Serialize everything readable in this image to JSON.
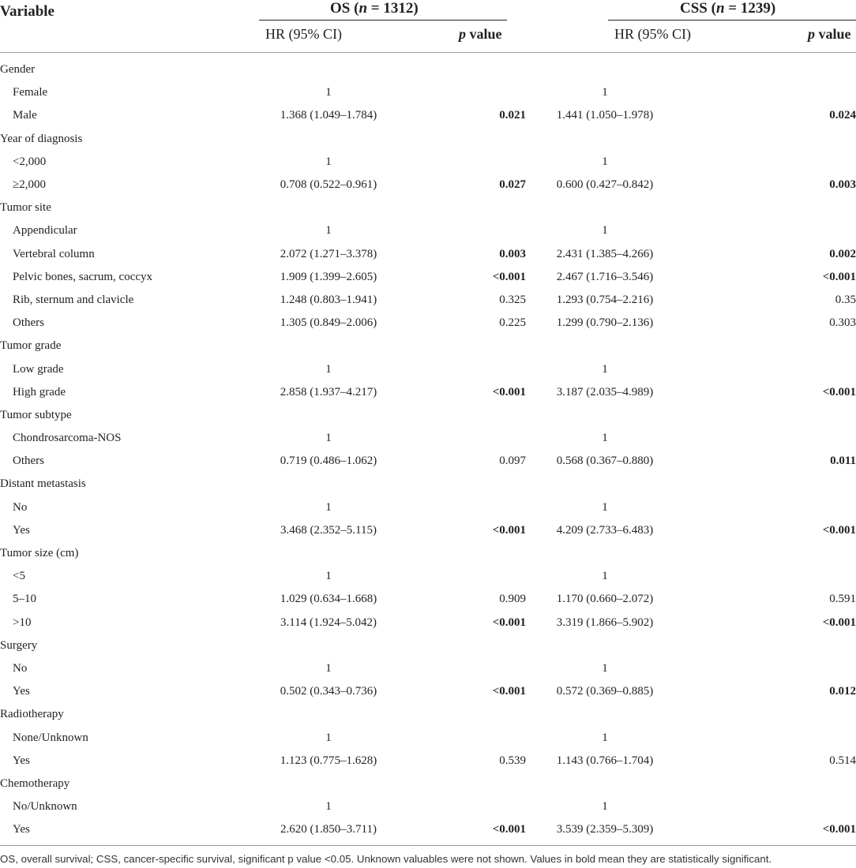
{
  "header": {
    "variable_label": "Variable",
    "os_group": "OS (",
    "os_n_label": "n",
    "os_n_value": " = 1312)",
    "css_group": "CSS (",
    "css_n_label": "n",
    "css_n_value": " = 1239)",
    "hr_label": "HR (95% CI)",
    "p_label_italic": "p",
    "p_label_rest": " value"
  },
  "rows": [
    {
      "label": "Gender",
      "indent": false,
      "os_hr": "",
      "os_p": "",
      "os_sig": false,
      "css_hr": "",
      "css_p": "",
      "css_sig": false
    },
    {
      "label": "Female",
      "indent": true,
      "os_hr": "1",
      "os_p": "",
      "os_sig": false,
      "css_hr": "1",
      "css_p": "",
      "css_sig": false
    },
    {
      "label": "Male",
      "indent": true,
      "os_hr": "1.368 (1.049–1.784)",
      "os_p": "0.021",
      "os_sig": true,
      "css_hr": "1.441 (1.050–1.978)",
      "css_p": "0.024",
      "css_sig": true
    },
    {
      "label": "Year of diagnosis",
      "indent": false,
      "os_hr": "",
      "os_p": "",
      "os_sig": false,
      "css_hr": "",
      "css_p": "",
      "css_sig": false
    },
    {
      "label": "<2,000",
      "indent": true,
      "os_hr": "1",
      "os_p": "",
      "os_sig": false,
      "css_hr": "1",
      "css_p": "",
      "css_sig": false
    },
    {
      "label": "≥2,000",
      "indent": true,
      "os_hr": "0.708 (0.522–0.961)",
      "os_p": "0.027",
      "os_sig": true,
      "css_hr": "0.600 (0.427–0.842)",
      "css_p": "0.003",
      "css_sig": true
    },
    {
      "label": "Tumor site",
      "indent": false,
      "os_hr": "",
      "os_p": "",
      "os_sig": false,
      "css_hr": "",
      "css_p": "",
      "css_sig": false
    },
    {
      "label": "Appendicular",
      "indent": true,
      "os_hr": "1",
      "os_p": "",
      "os_sig": false,
      "css_hr": "1",
      "css_p": "",
      "css_sig": false
    },
    {
      "label": "Vertebral column",
      "indent": true,
      "os_hr": "2.072 (1.271–3.378)",
      "os_p": "0.003",
      "os_sig": true,
      "css_hr": "2.431 (1.385–4.266)",
      "css_p": "0.002",
      "css_sig": true
    },
    {
      "label": "Pelvic bones, sacrum, coccyx",
      "indent": true,
      "os_hr": "1.909 (1.399–2.605)",
      "os_p": "<0.001",
      "os_sig": true,
      "css_hr": "2.467 (1.716–3.546)",
      "css_p": "<0.001",
      "css_sig": true
    },
    {
      "label": "Rib, sternum and clavicle",
      "indent": true,
      "os_hr": "1.248 (0.803–1.941)",
      "os_p": "0.325",
      "os_sig": false,
      "css_hr": "1.293 (0.754–2.216)",
      "css_p": "0.35",
      "css_sig": false
    },
    {
      "label": "Others",
      "indent": true,
      "os_hr": "1.305 (0.849–2.006)",
      "os_p": "0.225",
      "os_sig": false,
      "css_hr": "1.299 (0.790–2.136)",
      "css_p": "0.303",
      "css_sig": false
    },
    {
      "label": "Tumor grade",
      "indent": false,
      "os_hr": "",
      "os_p": "",
      "os_sig": false,
      "css_hr": "",
      "css_p": "",
      "css_sig": false
    },
    {
      "label": "Low grade",
      "indent": true,
      "os_hr": "1",
      "os_p": "",
      "os_sig": false,
      "css_hr": "1",
      "css_p": "",
      "css_sig": false
    },
    {
      "label": "High grade",
      "indent": true,
      "os_hr": "2.858 (1.937–4.217)",
      "os_p": "<0.001",
      "os_sig": true,
      "css_hr": "3.187 (2.035–4.989)",
      "css_p": "<0.001",
      "css_sig": true
    },
    {
      "label": "Tumor subtype",
      "indent": false,
      "os_hr": "",
      "os_p": "",
      "os_sig": false,
      "css_hr": "",
      "css_p": "",
      "css_sig": false
    },
    {
      "label": "Chondrosarcoma-NOS",
      "indent": true,
      "os_hr": "1",
      "os_p": "",
      "os_sig": false,
      "css_hr": "1",
      "css_p": "",
      "css_sig": false
    },
    {
      "label": "Others",
      "indent": true,
      "os_hr": "0.719 (0.486–1.062)",
      "os_p": "0.097",
      "os_sig": false,
      "css_hr": "0.568 (0.367–0.880)",
      "css_p": "0.011",
      "css_sig": true
    },
    {
      "label": "Distant metastasis",
      "indent": false,
      "os_hr": "",
      "os_p": "",
      "os_sig": false,
      "css_hr": "",
      "css_p": "",
      "css_sig": false
    },
    {
      "label": "No",
      "indent": true,
      "os_hr": "1",
      "os_p": "",
      "os_sig": false,
      "css_hr": "1",
      "css_p": "",
      "css_sig": false
    },
    {
      "label": "Yes",
      "indent": true,
      "os_hr": "3.468 (2.352–5.115)",
      "os_p": "<0.001",
      "os_sig": true,
      "css_hr": "4.209 (2.733–6.483)",
      "css_p": "<0.001",
      "css_sig": true
    },
    {
      "label": "Tumor size (cm)",
      "indent": false,
      "os_hr": "",
      "os_p": "",
      "os_sig": false,
      "css_hr": "",
      "css_p": "",
      "css_sig": false
    },
    {
      "label": "<5",
      "indent": true,
      "os_hr": "1",
      "os_p": "",
      "os_sig": false,
      "css_hr": "1",
      "css_p": "",
      "css_sig": false
    },
    {
      "label": "5–10",
      "indent": true,
      "os_hr": "1.029 (0.634–1.668)",
      "os_p": "0.909",
      "os_sig": false,
      "css_hr": "1.170 (0.660–2.072)",
      "css_p": "0.591",
      "css_sig": false
    },
    {
      "label": ">10",
      "indent": true,
      "os_hr": "3.114 (1.924–5.042)",
      "os_p": "<0.001",
      "os_sig": true,
      "css_hr": "3.319 (1.866–5.902)",
      "css_p": "<0.001",
      "css_sig": true
    },
    {
      "label": "Surgery",
      "indent": false,
      "os_hr": "",
      "os_p": "",
      "os_sig": false,
      "css_hr": "",
      "css_p": "",
      "css_sig": false
    },
    {
      "label": "No",
      "indent": true,
      "os_hr": "1",
      "os_p": "",
      "os_sig": false,
      "css_hr": "1",
      "css_p": "",
      "css_sig": false
    },
    {
      "label": "Yes",
      "indent": true,
      "os_hr": "0.502 (0.343–0.736)",
      "os_p": "<0.001",
      "os_sig": true,
      "css_hr": "0.572 (0.369–0.885)",
      "css_p": "0.012",
      "css_sig": true
    },
    {
      "label": "Radiotherapy",
      "indent": false,
      "os_hr": "",
      "os_p": "",
      "os_sig": false,
      "css_hr": "",
      "css_p": "",
      "css_sig": false
    },
    {
      "label": "None/Unknown",
      "indent": true,
      "os_hr": "1",
      "os_p": "",
      "os_sig": false,
      "css_hr": "1",
      "css_p": "",
      "css_sig": false
    },
    {
      "label": "Yes",
      "indent": true,
      "os_hr": "1.123 (0.775–1.628)",
      "os_p": "0.539",
      "os_sig": false,
      "css_hr": "1.143 (0.766–1.704)",
      "css_p": "0.514",
      "css_sig": false
    },
    {
      "label": "Chemotherapy",
      "indent": false,
      "os_hr": "",
      "os_p": "",
      "os_sig": false,
      "css_hr": "",
      "css_p": "",
      "css_sig": false
    },
    {
      "label": "No/Unknown",
      "indent": true,
      "os_hr": "1",
      "os_p": "",
      "os_sig": false,
      "css_hr": "1",
      "css_p": "",
      "css_sig": false
    },
    {
      "label": "Yes",
      "indent": true,
      "os_hr": "2.620 (1.850–3.711)",
      "os_p": "<0.001",
      "os_sig": true,
      "css_hr": "3.539 (2.359–5.309)",
      "css_p": "<0.001",
      "css_sig": true
    }
  ],
  "footnote": "OS, overall survival; CSS, cancer-specific survival, significant p value <0.05. Unknown valuables were not shown. Values in bold mean they are statistically significant."
}
